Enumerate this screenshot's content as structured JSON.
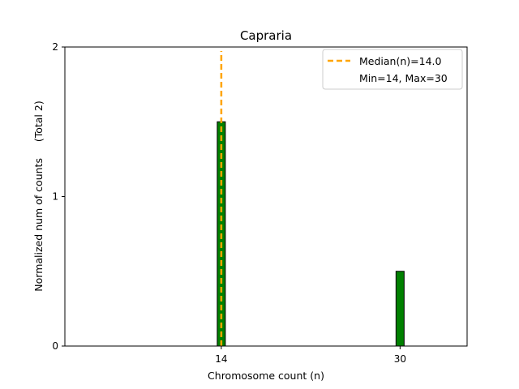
{
  "chart_data": {
    "type": "bar",
    "title": "Capraria",
    "xlabel": "Chromosome count (n)",
    "ylabel": "Normalized num of counts     (Total 2)",
    "x": [
      14,
      30
    ],
    "values": [
      1.5,
      0.5
    ],
    "xticks": [
      "14",
      "30"
    ],
    "yticks": [
      "0",
      "1",
      "2"
    ],
    "xlim": [
      0,
      36
    ],
    "ylim": [
      0,
      2
    ],
    "grid": false,
    "median": 14.0,
    "legend": {
      "placement": "top-right",
      "entries": [
        "Median(n)=14.0",
        "Min=14, Max=30"
      ]
    },
    "colors": {
      "bar_fill": "#008000",
      "bar_edge": "#000000",
      "median_line": "#FFA500"
    }
  }
}
